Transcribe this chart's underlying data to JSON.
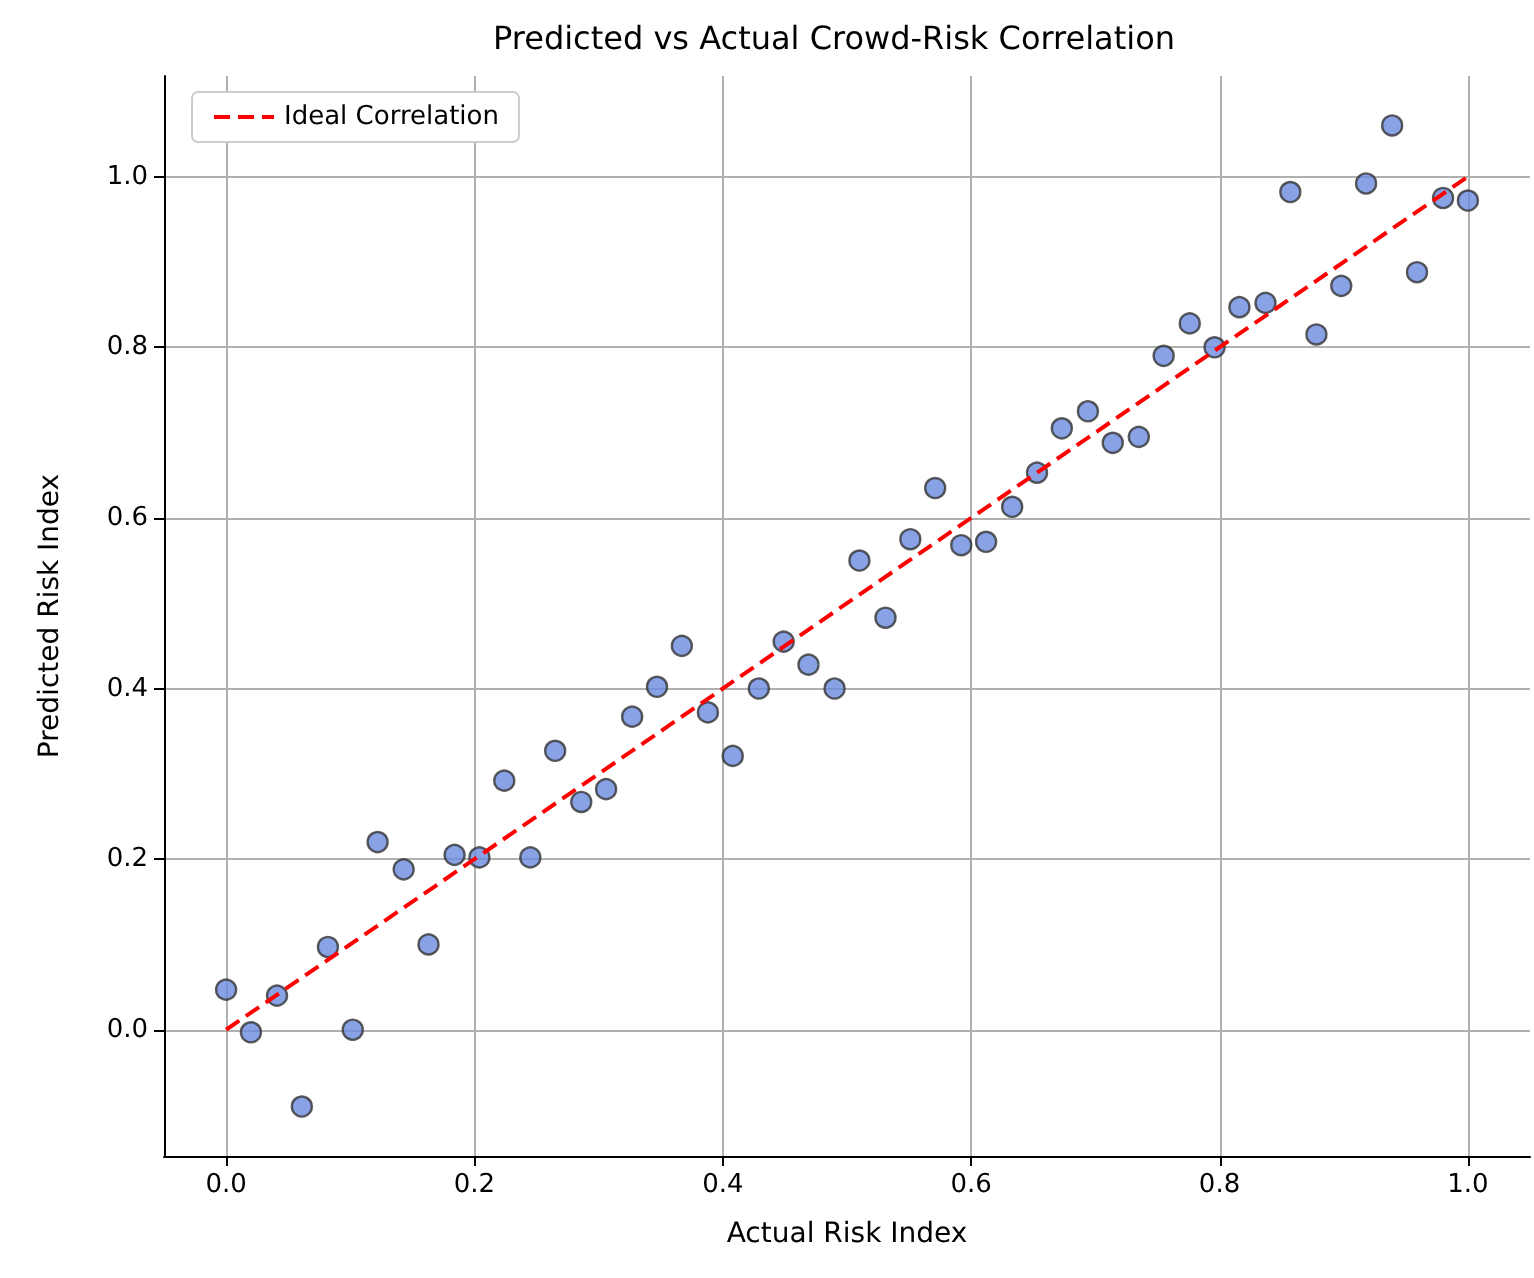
{
  "chart_data": {
    "type": "scatter",
    "title": "Predicted vs Actual Crowd-Risk Correlation",
    "xlabel": "Actual Risk Index",
    "ylabel": "Predicted Risk Index",
    "xlim": [
      -0.05,
      1.05
    ],
    "ylim": [
      -0.148,
      1.118
    ],
    "xticks": [
      {
        "value": 0,
        "label": "0.0"
      },
      {
        "value": 0.2,
        "label": "0.2"
      },
      {
        "value": 0.4,
        "label": "0.4"
      },
      {
        "value": 0.6,
        "label": "0.6"
      },
      {
        "value": 0.8,
        "label": "0.8"
      },
      {
        "value": 1,
        "label": "1.0"
      }
    ],
    "yticks": [
      {
        "value": 0,
        "label": "0.0"
      },
      {
        "value": 0.2,
        "label": "0.2"
      },
      {
        "value": 0.4,
        "label": "0.4"
      },
      {
        "value": 0.6,
        "label": "0.6"
      },
      {
        "value": 0.8,
        "label": "0.8"
      },
      {
        "value": 1,
        "label": "1.0"
      }
    ],
    "grid": true,
    "legend": "top left",
    "marker": "circle",
    "series": [
      {
        "type": "scatter",
        "color": "#6b8be0",
        "x": [
          0,
          0.02,
          0.041,
          0.061,
          0.082,
          0.102,
          0.122,
          0.143,
          0.163,
          0.184,
          0.204,
          0.224,
          0.245,
          0.265,
          0.286,
          0.306,
          0.327,
          0.347,
          0.367,
          0.388,
          0.408,
          0.429,
          0.449,
          0.469,
          0.49,
          0.51,
          0.531,
          0.551,
          0.571,
          0.592,
          0.612,
          0.633,
          0.653,
          0.673,
          0.694,
          0.714,
          0.735,
          0.755,
          0.776,
          0.796,
          0.816,
          0.837,
          0.857,
          0.878,
          0.898,
          0.918,
          0.939,
          0.959,
          0.98,
          1
        ],
        "values": [
          0.047,
          -0.003,
          0.04,
          -0.09,
          0.097,
          0,
          0.22,
          0.188,
          0.1,
          0.205,
          0.202,
          0.292,
          0.202,
          0.327,
          0.267,
          0.282,
          0.367,
          0.402,
          0.45,
          0.372,
          0.321,
          0.4,
          0.455,
          0.428,
          0.4,
          0.55,
          0.483,
          0.575,
          0.635,
          0.568,
          0.572,
          0.613,
          0.653,
          0.705,
          0.725,
          0.688,
          0.695,
          0.79,
          0.828,
          0.8,
          0.847,
          0.852,
          0.982,
          0.815,
          0.872,
          0.992,
          1.06,
          0.888,
          0.975,
          0.972
        ]
      },
      {
        "type": "line",
        "name": "Ideal Correlation",
        "color": "#ff0000",
        "line_style": "dashed",
        "marker": "none",
        "x": [
          0,
          1
        ],
        "values": [
          0,
          1
        ]
      }
    ]
  }
}
